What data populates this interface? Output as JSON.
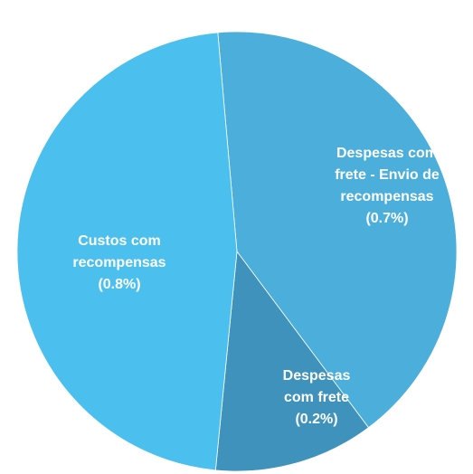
{
  "chart_data": {
    "type": "pie",
    "slices": [
      {
        "name": "Despesas com frete - Envio de recompensas",
        "value": 0.7,
        "percent_label": "(0.7%)",
        "label_lines": [
          "Despesas com",
          "frete - Envio de",
          "recompensas",
          "(0.7%)"
        ],
        "color": "#4BAEDB"
      },
      {
        "name": "Despesas com frete",
        "value": 0.2,
        "percent_label": "(0.2%)",
        "label_lines": [
          "Despesas",
          "com frete",
          "(0.2%)"
        ],
        "color": "#3E92BB"
      },
      {
        "name": "Custos com recompensas",
        "value": 0.8,
        "percent_label": "(0.8%)",
        "label_lines": [
          "Custos com",
          "recompensas",
          "(0.8%)"
        ],
        "color": "#4BC0EE"
      }
    ],
    "start_angle_deg": -5,
    "clockwise": true,
    "legend": "none"
  }
}
